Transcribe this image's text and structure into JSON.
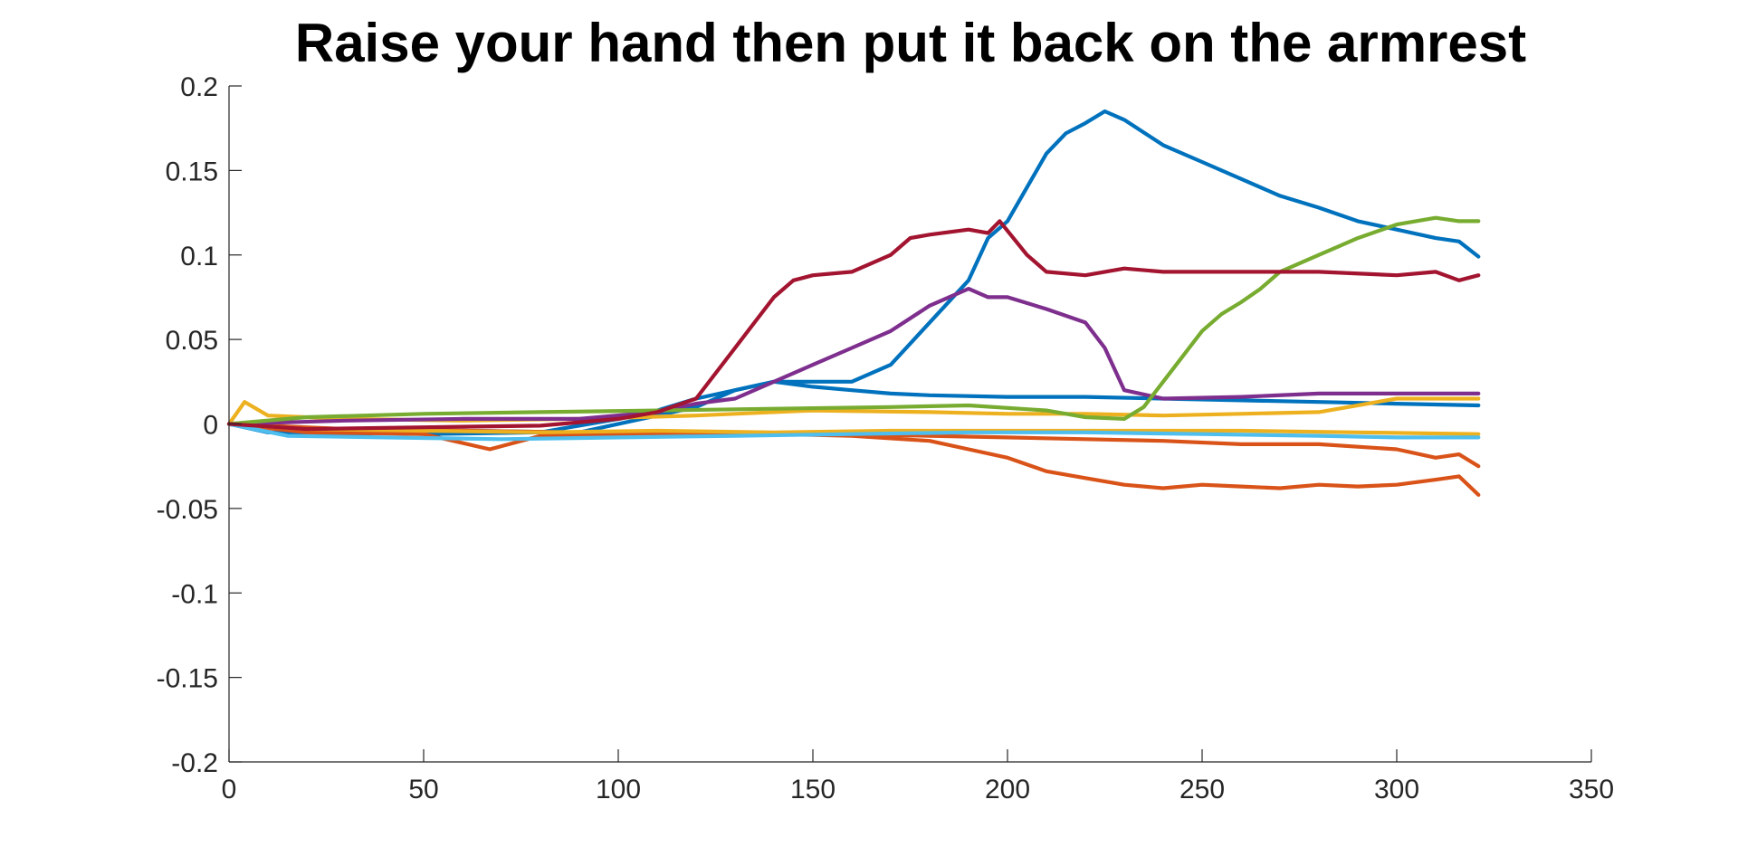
{
  "chart_data": {
    "type": "line",
    "title": "Raise your hand then put it back on the armrest",
    "xlabel": "",
    "ylabel": "",
    "xlim": [
      0,
      350
    ],
    "ylim": [
      -0.2,
      0.2
    ],
    "xticks": [
      "0",
      "50",
      "100",
      "150",
      "200",
      "250",
      "300",
      "350"
    ],
    "yticks": [
      "0.2",
      "0.15",
      "0.1",
      "0.05",
      "0",
      "-0.05",
      "-0.1",
      "-0.15",
      "-0.2"
    ],
    "grid": false,
    "legend": "none",
    "series": [
      {
        "color": "#0072BD",
        "points": [
          [
            0,
            0
          ],
          [
            10,
            -0.005
          ],
          [
            30,
            -0.006
          ],
          [
            60,
            -0.004
          ],
          [
            90,
            -0.005
          ],
          [
            110,
            0.005
          ],
          [
            120,
            0.01
          ],
          [
            125,
            0.015
          ],
          [
            130,
            0.02
          ],
          [
            140,
            0.025
          ],
          [
            150,
            0.025
          ],
          [
            160,
            0.025
          ],
          [
            170,
            0.035
          ],
          [
            180,
            0.06
          ],
          [
            190,
            0.085
          ],
          [
            195,
            0.11
          ],
          [
            200,
            0.12
          ],
          [
            205,
            0.14
          ],
          [
            210,
            0.16
          ],
          [
            215,
            0.172
          ],
          [
            220,
            0.178
          ],
          [
            225,
            0.185
          ],
          [
            230,
            0.18
          ],
          [
            240,
            0.165
          ],
          [
            250,
            0.155
          ],
          [
            260,
            0.145
          ],
          [
            270,
            0.135
          ],
          [
            280,
            0.128
          ],
          [
            290,
            0.12
          ],
          [
            300,
            0.115
          ],
          [
            310,
            0.11
          ],
          [
            316,
            0.108
          ],
          [
            321,
            0.099
          ]
        ]
      },
      {
        "color": "#0072BD",
        "points": [
          [
            0,
            0
          ],
          [
            20,
            -0.004
          ],
          [
            50,
            -0.006
          ],
          [
            80,
            -0.005
          ],
          [
            100,
            0.003
          ],
          [
            110,
            0.008
          ],
          [
            120,
            0.015
          ],
          [
            130,
            0.02
          ],
          [
            140,
            0.025
          ],
          [
            150,
            0.022
          ],
          [
            160,
            0.02
          ],
          [
            170,
            0.018
          ],
          [
            180,
            0.017
          ],
          [
            200,
            0.016
          ],
          [
            220,
            0.016
          ],
          [
            240,
            0.015
          ],
          [
            260,
            0.014
          ],
          [
            280,
            0.013
          ],
          [
            300,
            0.012
          ],
          [
            321,
            0.011
          ]
        ]
      },
      {
        "color": "#D95319",
        "points": [
          [
            0,
            0
          ],
          [
            20,
            -0.005
          ],
          [
            50,
            -0.006
          ],
          [
            67,
            -0.015
          ],
          [
            80,
            -0.007
          ],
          [
            100,
            -0.006
          ],
          [
            120,
            -0.007
          ],
          [
            140,
            -0.006
          ],
          [
            160,
            -0.007
          ],
          [
            180,
            -0.01
          ],
          [
            190,
            -0.015
          ],
          [
            200,
            -0.02
          ],
          [
            210,
            -0.028
          ],
          [
            220,
            -0.032
          ],
          [
            230,
            -0.036
          ],
          [
            240,
            -0.038
          ],
          [
            250,
            -0.036
          ],
          [
            260,
            -0.037
          ],
          [
            270,
            -0.038
          ],
          [
            280,
            -0.036
          ],
          [
            290,
            -0.037
          ],
          [
            300,
            -0.036
          ],
          [
            310,
            -0.033
          ],
          [
            316,
            -0.031
          ],
          [
            321,
            -0.042
          ]
        ]
      },
      {
        "color": "#D95319",
        "points": [
          [
            0,
            0
          ],
          [
            30,
            -0.003
          ],
          [
            60,
            -0.004
          ],
          [
            90,
            -0.005
          ],
          [
            120,
            -0.005
          ],
          [
            150,
            -0.006
          ],
          [
            180,
            -0.007
          ],
          [
            200,
            -0.008
          ],
          [
            220,
            -0.009
          ],
          [
            240,
            -0.01
          ],
          [
            260,
            -0.012
          ],
          [
            280,
            -0.012
          ],
          [
            300,
            -0.015
          ],
          [
            310,
            -0.02
          ],
          [
            316,
            -0.018
          ],
          [
            321,
            -0.025
          ]
        ]
      },
      {
        "color": "#EDB120",
        "points": [
          [
            0,
            0
          ],
          [
            4,
            0.013
          ],
          [
            10,
            0.005
          ],
          [
            30,
            0.003
          ],
          [
            60,
            0.002
          ],
          [
            90,
            0.003
          ],
          [
            120,
            0.005
          ],
          [
            150,
            0.008
          ],
          [
            180,
            0.007
          ],
          [
            200,
            0.006
          ],
          [
            220,
            0.006
          ],
          [
            240,
            0.005
          ],
          [
            260,
            0.006
          ],
          [
            280,
            0.007
          ],
          [
            300,
            0.015
          ],
          [
            310,
            0.015
          ],
          [
            321,
            0.015
          ]
        ]
      },
      {
        "color": "#EDB120",
        "points": [
          [
            0,
            0
          ],
          [
            20,
            -0.003
          ],
          [
            50,
            -0.004
          ],
          [
            80,
            -0.005
          ],
          [
            110,
            -0.004
          ],
          [
            140,
            -0.005
          ],
          [
            170,
            -0.004
          ],
          [
            200,
            -0.004
          ],
          [
            230,
            -0.004
          ],
          [
            260,
            -0.004
          ],
          [
            290,
            -0.005
          ],
          [
            321,
            -0.006
          ]
        ]
      },
      {
        "color": "#7E2F8E",
        "points": [
          [
            0,
            0
          ],
          [
            30,
            0.002
          ],
          [
            60,
            0.003
          ],
          [
            90,
            0.003
          ],
          [
            110,
            0.007
          ],
          [
            120,
            0.012
          ],
          [
            130,
            0.015
          ],
          [
            140,
            0.025
          ],
          [
            150,
            0.035
          ],
          [
            160,
            0.045
          ],
          [
            170,
            0.055
          ],
          [
            180,
            0.07
          ],
          [
            185,
            0.075
          ],
          [
            190,
            0.08
          ],
          [
            195,
            0.075
          ],
          [
            200,
            0.075
          ],
          [
            210,
            0.068
          ],
          [
            220,
            0.06
          ],
          [
            225,
            0.045
          ],
          [
            230,
            0.02
          ],
          [
            240,
            0.015
          ],
          [
            260,
            0.016
          ],
          [
            280,
            0.018
          ],
          [
            300,
            0.018
          ],
          [
            321,
            0.018
          ]
        ]
      },
      {
        "color": "#77AC30",
        "points": [
          [
            0,
            0
          ],
          [
            20,
            0.004
          ],
          [
            50,
            0.006
          ],
          [
            80,
            0.007
          ],
          [
            110,
            0.008
          ],
          [
            140,
            0.009
          ],
          [
            170,
            0.01
          ],
          [
            190,
            0.011
          ],
          [
            210,
            0.008
          ],
          [
            220,
            0.004
          ],
          [
            230,
            0.003
          ],
          [
            235,
            0.01
          ],
          [
            240,
            0.025
          ],
          [
            245,
            0.04
          ],
          [
            250,
            0.055
          ],
          [
            255,
            0.065
          ],
          [
            260,
            0.072
          ],
          [
            265,
            0.08
          ],
          [
            270,
            0.09
          ],
          [
            275,
            0.095
          ],
          [
            280,
            0.1
          ],
          [
            285,
            0.105
          ],
          [
            290,
            0.11
          ],
          [
            300,
            0.118
          ],
          [
            310,
            0.122
          ],
          [
            316,
            0.12
          ],
          [
            321,
            0.12
          ]
        ]
      },
      {
        "color": "#4DBEEE",
        "points": [
          [
            0,
            0
          ],
          [
            15,
            -0.007
          ],
          [
            40,
            -0.008
          ],
          [
            70,
            -0.009
          ],
          [
            100,
            -0.008
          ],
          [
            130,
            -0.007
          ],
          [
            160,
            -0.006
          ],
          [
            190,
            -0.005
          ],
          [
            220,
            -0.005
          ],
          [
            250,
            -0.006
          ],
          [
            280,
            -0.007
          ],
          [
            300,
            -0.008
          ],
          [
            321,
            -0.008
          ]
        ]
      },
      {
        "color": "#A2142F",
        "points": [
          [
            0,
            0
          ],
          [
            20,
            -0.003
          ],
          [
            50,
            -0.002
          ],
          [
            80,
            -0.001
          ],
          [
            100,
            0.003
          ],
          [
            110,
            0.007
          ],
          [
            120,
            0.015
          ],
          [
            125,
            0.03
          ],
          [
            130,
            0.045
          ],
          [
            135,
            0.06
          ],
          [
            140,
            0.075
          ],
          [
            145,
            0.085
          ],
          [
            150,
            0.088
          ],
          [
            160,
            0.09
          ],
          [
            170,
            0.1
          ],
          [
            175,
            0.11
          ],
          [
            180,
            0.112
          ],
          [
            190,
            0.115
          ],
          [
            195,
            0.113
          ],
          [
            198,
            0.12
          ],
          [
            205,
            0.1
          ],
          [
            210,
            0.09
          ],
          [
            220,
            0.088
          ],
          [
            230,
            0.092
          ],
          [
            240,
            0.09
          ],
          [
            260,
            0.09
          ],
          [
            280,
            0.09
          ],
          [
            300,
            0.088
          ],
          [
            310,
            0.09
          ],
          [
            316,
            0.085
          ],
          [
            321,
            0.088
          ]
        ]
      }
    ]
  }
}
